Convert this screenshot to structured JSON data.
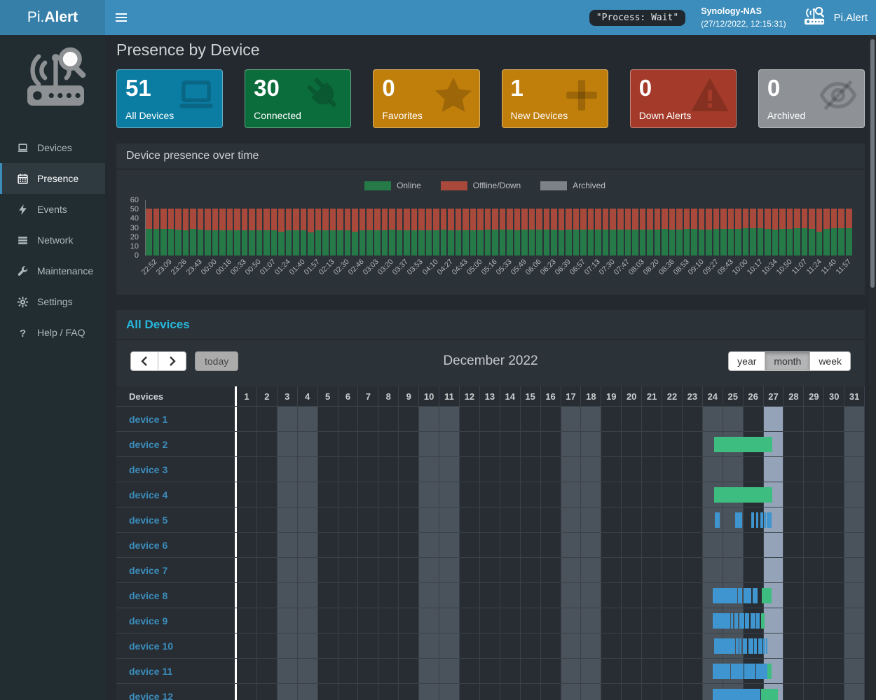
{
  "navbar": {
    "logo_prefix": "Pi.",
    "logo_bold": "Alert",
    "process_badge": "\"Process: Wait\"",
    "host_name": "Synology-NAS",
    "host_time": "(27/12/2022, 12:15:31)",
    "brand_label": "Pi.Alert"
  },
  "sidebar": {
    "items": [
      {
        "label": "Devices",
        "icon": "laptop-icon",
        "active": false
      },
      {
        "label": "Presence",
        "icon": "calendar-icon",
        "active": true
      },
      {
        "label": "Events",
        "icon": "bolt-icon",
        "active": false
      },
      {
        "label": "Network",
        "icon": "network-icon",
        "active": false
      },
      {
        "label": "Maintenance",
        "icon": "wrench-icon",
        "active": false
      },
      {
        "label": "Settings",
        "icon": "gear-icon",
        "active": false
      },
      {
        "label": "Help / FAQ",
        "icon": "question-icon",
        "active": false
      }
    ]
  },
  "page": {
    "title": "Presence by Device"
  },
  "cards": [
    {
      "value": "51",
      "label": "All Devices",
      "color": "#0b7da3",
      "icon": "laptop-icon"
    },
    {
      "value": "30",
      "label": "Connected",
      "color": "#0b6c3c",
      "icon": "plug-icon"
    },
    {
      "value": "0",
      "label": "Favorites",
      "color": "#c07e0b",
      "icon": "star-icon"
    },
    {
      "value": "1",
      "label": "New Devices",
      "color": "#c07e0b",
      "icon": "plus-icon"
    },
    {
      "value": "0",
      "label": "Down Alerts",
      "color": "#a43b2a",
      "icon": "warning-icon"
    },
    {
      "value": "0",
      "label": "Archived",
      "color": "#8e9296",
      "icon": "eye-slash-icon"
    }
  ],
  "chart_panel": {
    "title": "Device presence over time"
  },
  "chart_data": {
    "type": "bar",
    "stacked": true,
    "title": "Device presence over time",
    "legend": [
      {
        "label": "Online",
        "color": "#267a48"
      },
      {
        "label": "Offline/Down",
        "color": "#a8493c"
      },
      {
        "label": "Archived",
        "color": "#7d8287"
      }
    ],
    "ylim": [
      0,
      60
    ],
    "yticks": [
      60,
      50,
      40,
      30,
      20,
      10,
      0
    ],
    "stack_total": 51,
    "bars_per_tick": 2,
    "x_tick_labels": [
      "22:52",
      "23:09",
      "23:26",
      "23:43",
      "00:00",
      "00:16",
      "00:33",
      "00:50",
      "01:07",
      "01:24",
      "01:40",
      "01:57",
      "02:13",
      "02:30",
      "02:46",
      "03:03",
      "03:20",
      "03:37",
      "03:53",
      "04:10",
      "04:27",
      "04:43",
      "05:00",
      "05:16",
      "05:33",
      "05:49",
      "06:06",
      "06:23",
      "06:39",
      "06:57",
      "07:13",
      "07:30",
      "07:47",
      "08:03",
      "08:20",
      "08:36",
      "08:53",
      "09:10",
      "09:27",
      "09:43",
      "10:00",
      "10:17",
      "10:34",
      "10:50",
      "11:07",
      "11:24",
      "11:40",
      "11:57"
    ],
    "series": [
      {
        "name": "Online",
        "color": "#267a48",
        "values": [
          29,
          29,
          29,
          29,
          28,
          27,
          29,
          28,
          27,
          27,
          27,
          27,
          27,
          27,
          27,
          27,
          27,
          27,
          26,
          27,
          27,
          27,
          25,
          27,
          27,
          27,
          27,
          27,
          26,
          27,
          27,
          27,
          27,
          28,
          27,
          27,
          27,
          27,
          27,
          27,
          28,
          27,
          27,
          27,
          27,
          27,
          28,
          28,
          28,
          28,
          27,
          28,
          28,
          28,
          28,
          28,
          27,
          28,
          28,
          28,
          28,
          28,
          28,
          28,
          28,
          28,
          28,
          28,
          28,
          28,
          29,
          28,
          28,
          29,
          29,
          28,
          28,
          29,
          29,
          29,
          29,
          30,
          30,
          30,
          29,
          28,
          29,
          29,
          30,
          30,
          29,
          26,
          29,
          30,
          30,
          30
        ]
      },
      {
        "name": "Offline/Down",
        "color": "#a8493c",
        "values_rule": "stack_total - Online"
      },
      {
        "name": "Archived",
        "color": "#7d8287",
        "values_rule": "0"
      }
    ]
  },
  "calendar": {
    "section_title": "All Devices",
    "nav": {
      "today_label": "today"
    },
    "month_title": "December 2022",
    "views": [
      {
        "label": "year",
        "active": false
      },
      {
        "label": "month",
        "active": true
      },
      {
        "label": "week",
        "active": false
      }
    ],
    "header_label": "Devices",
    "days_in_month": 31,
    "weekend_days": [
      3,
      4,
      10,
      11,
      17,
      18,
      24,
      25,
      31
    ],
    "today_day": 27,
    "bar_colors": {
      "online": "#3ebd80",
      "session": "#3e95cf"
    },
    "devices": [
      {
        "name": "device 1",
        "bars": []
      },
      {
        "name": "device 2",
        "bars": [
          {
            "start": 23.55,
            "end": 26.45,
            "type": "online"
          }
        ]
      },
      {
        "name": "device 3",
        "bars": []
      },
      {
        "name": "device 4",
        "bars": [
          {
            "start": 23.55,
            "end": 26.45,
            "type": "online"
          }
        ]
      },
      {
        "name": "device 5",
        "bars": [
          {
            "start": 23.6,
            "end": 23.85,
            "type": "session"
          },
          {
            "start": 24.6,
            "end": 24.95,
            "type": "session"
          },
          {
            "start": 25.4,
            "end": 25.55,
            "type": "session"
          },
          {
            "start": 25.63,
            "end": 25.73,
            "type": "session"
          },
          {
            "start": 25.84,
            "end": 25.98,
            "type": "session"
          },
          {
            "start": 26.02,
            "end": 26.12,
            "type": "session"
          },
          {
            "start": 26.16,
            "end": 26.4,
            "type": "session"
          }
        ]
      },
      {
        "name": "device 6",
        "bars": []
      },
      {
        "name": "device 7",
        "bars": []
      },
      {
        "name": "device 8",
        "bars": [
          {
            "start": 23.5,
            "end": 24.7,
            "type": "session"
          },
          {
            "start": 24.75,
            "end": 24.95,
            "type": "session"
          },
          {
            "start": 25.0,
            "end": 25.4,
            "type": "session"
          },
          {
            "start": 25.45,
            "end": 25.72,
            "type": "session"
          },
          {
            "start": 25.9,
            "end": 26.4,
            "type": "online"
          }
        ]
      },
      {
        "name": "device 9",
        "bars": [
          {
            "start": 23.5,
            "end": 24.35,
            "type": "session"
          },
          {
            "start": 24.4,
            "end": 24.5,
            "type": "session"
          },
          {
            "start": 24.55,
            "end": 24.75,
            "type": "session"
          },
          {
            "start": 24.8,
            "end": 25.05,
            "type": "session"
          },
          {
            "start": 25.1,
            "end": 25.3,
            "type": "session"
          },
          {
            "start": 25.35,
            "end": 25.6,
            "type": "session"
          },
          {
            "start": 25.65,
            "end": 25.82,
            "type": "session"
          },
          {
            "start": 25.88,
            "end": 26.05,
            "type": "online"
          }
        ]
      },
      {
        "name": "device 10",
        "bars": [
          {
            "start": 23.55,
            "end": 24.6,
            "type": "session"
          },
          {
            "start": 24.65,
            "end": 24.78,
            "type": "session"
          },
          {
            "start": 24.82,
            "end": 24.92,
            "type": "session"
          },
          {
            "start": 24.97,
            "end": 25.2,
            "type": "session"
          },
          {
            "start": 25.25,
            "end": 25.5,
            "type": "session"
          },
          {
            "start": 25.55,
            "end": 25.68,
            "type": "session"
          },
          {
            "start": 25.73,
            "end": 25.95,
            "type": "session"
          },
          {
            "start": 26.0,
            "end": 26.1,
            "type": "session"
          },
          {
            "start": 26.13,
            "end": 26.2,
            "type": "session"
          }
        ]
      },
      {
        "name": "device 11",
        "bars": [
          {
            "start": 23.5,
            "end": 24.35,
            "type": "session"
          },
          {
            "start": 24.4,
            "end": 25.0,
            "type": "session"
          },
          {
            "start": 25.05,
            "end": 25.6,
            "type": "session"
          },
          {
            "start": 25.65,
            "end": 26.2,
            "type": "session"
          },
          {
            "start": 26.2,
            "end": 26.4,
            "type": "online"
          }
        ]
      },
      {
        "name": "device 12",
        "bars": [
          {
            "start": 23.5,
            "end": 25.85,
            "type": "session"
          },
          {
            "start": 25.88,
            "end": 26.7,
            "type": "online"
          }
        ]
      }
    ]
  }
}
